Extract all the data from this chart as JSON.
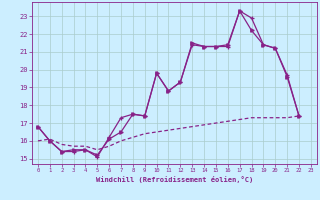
{
  "xlabel": "Windchill (Refroidissement éolien,°C)",
  "bg_color": "#cceeff",
  "grid_color": "#aacccc",
  "line_color": "#882288",
  "xlim": [
    -0.5,
    23.5
  ],
  "ylim": [
    14.7,
    23.8
  ],
  "xticks": [
    0,
    1,
    2,
    3,
    4,
    5,
    6,
    7,
    8,
    9,
    10,
    11,
    12,
    13,
    14,
    15,
    16,
    17,
    18,
    19,
    20,
    21,
    22,
    23
  ],
  "yticks": [
    15,
    16,
    17,
    18,
    19,
    20,
    21,
    22,
    23
  ],
  "series1": [
    [
      0,
      16.8
    ],
    [
      1,
      16.0
    ],
    [
      2,
      15.4
    ],
    [
      3,
      15.4
    ],
    [
      4,
      15.5
    ],
    [
      5,
      15.1
    ],
    [
      6,
      16.2
    ],
    [
      7,
      17.3
    ],
    [
      8,
      17.5
    ],
    [
      9,
      17.4
    ],
    [
      10,
      19.8
    ],
    [
      11,
      18.8
    ],
    [
      12,
      19.3
    ],
    [
      13,
      21.4
    ],
    [
      14,
      21.3
    ],
    [
      15,
      21.3
    ],
    [
      16,
      21.3
    ],
    [
      17,
      23.3
    ],
    [
      18,
      22.9
    ],
    [
      19,
      21.4
    ],
    [
      20,
      21.2
    ],
    [
      21,
      19.7
    ],
    [
      22,
      17.4
    ]
  ],
  "series2": [
    [
      0,
      16.8
    ],
    [
      1,
      16.0
    ],
    [
      2,
      15.4
    ],
    [
      3,
      15.5
    ],
    [
      4,
      15.5
    ],
    [
      5,
      15.2
    ],
    [
      6,
      16.1
    ],
    [
      7,
      16.5
    ],
    [
      8,
      17.5
    ],
    [
      9,
      17.4
    ],
    [
      10,
      19.8
    ],
    [
      11,
      18.8
    ],
    [
      12,
      19.3
    ],
    [
      13,
      21.5
    ],
    [
      14,
      21.3
    ],
    [
      15,
      21.3
    ],
    [
      16,
      21.4
    ],
    [
      17,
      23.3
    ],
    [
      18,
      22.2
    ],
    [
      19,
      21.4
    ],
    [
      20,
      21.2
    ],
    [
      21,
      19.6
    ],
    [
      22,
      17.4
    ]
  ],
  "series3": [
    [
      0,
      16.0
    ],
    [
      1,
      16.1
    ],
    [
      2,
      15.8
    ],
    [
      3,
      15.7
    ],
    [
      4,
      15.7
    ],
    [
      5,
      15.5
    ],
    [
      6,
      15.7
    ],
    [
      7,
      16.0
    ],
    [
      8,
      16.2
    ],
    [
      9,
      16.4
    ],
    [
      10,
      16.5
    ],
    [
      11,
      16.6
    ],
    [
      12,
      16.7
    ],
    [
      13,
      16.8
    ],
    [
      14,
      16.9
    ],
    [
      15,
      17.0
    ],
    [
      16,
      17.1
    ],
    [
      17,
      17.2
    ],
    [
      18,
      17.3
    ],
    [
      19,
      17.3
    ],
    [
      20,
      17.3
    ],
    [
      21,
      17.3
    ],
    [
      22,
      17.4
    ]
  ]
}
